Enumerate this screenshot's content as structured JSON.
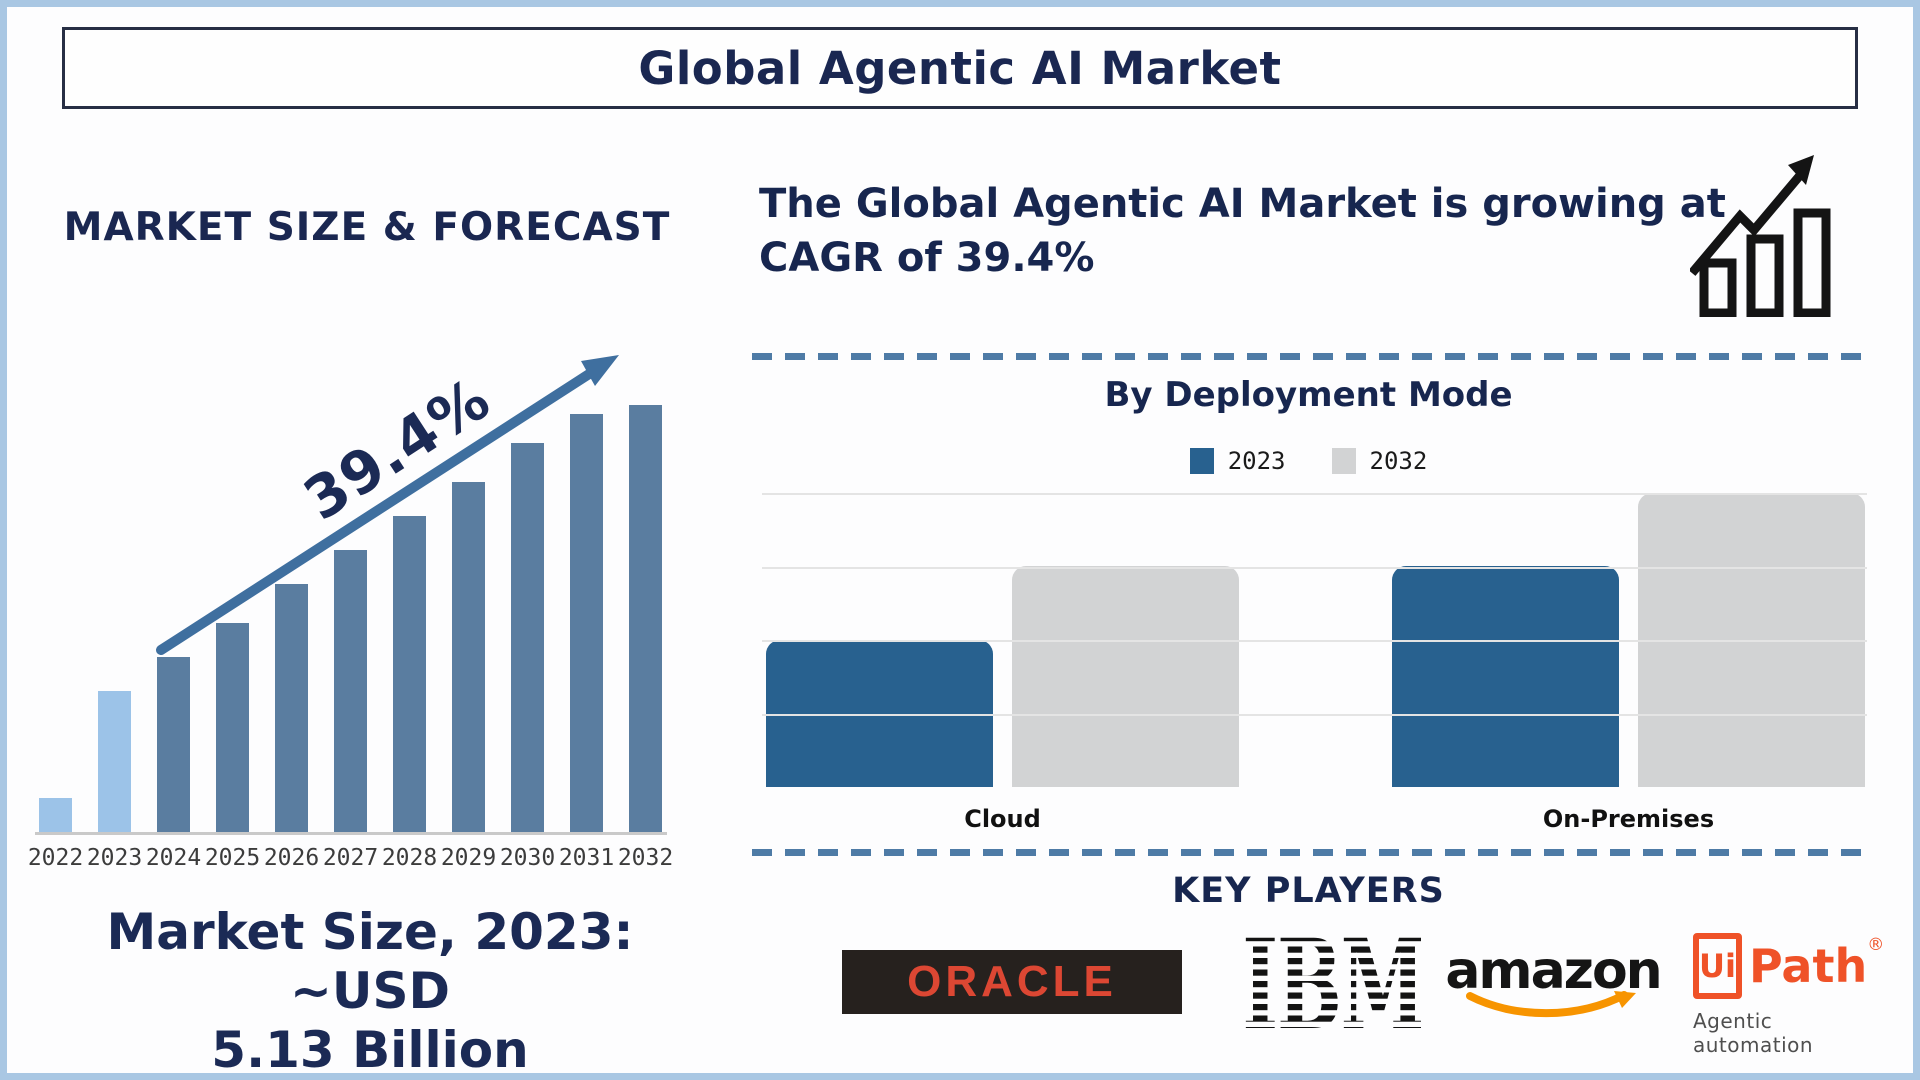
{
  "page": {
    "title": "Global Agentic AI Market",
    "colors": {
      "navy_text": "#1a2751",
      "steel_bar": "#5a7da0",
      "light_bar": "#9cc3e8",
      "trend_arrow_blue": "#3f6f9f",
      "deployment_2023_blue": "#28618f",
      "deployment_2032_gray": "#d2d3d4",
      "dashed_divider_blue": "#4e7ba6",
      "frame_light_blue": "#a9c7e3",
      "oracle_red": "#dc4733",
      "amazon_orange": "#f79400",
      "uipath_orange": "#ef5228"
    }
  },
  "left": {
    "caption_line1": "Market Size, 2023: ~USD",
    "caption_line2": "5.13 Billion"
  },
  "right": {
    "heading_line1": "The Global Agentic AI Market is growing at",
    "heading_line2": "CAGR of 39.4%",
    "key_players_title": "KEY PLAYERS",
    "logos": {
      "oracle": "ORACLE",
      "ibm": "IBM",
      "amazon": "amazon",
      "uipath_box": "Ui",
      "uipath_text": "Path",
      "uipath_reg": "®",
      "uipath_caption": "Agentic automation"
    }
  },
  "chart_data": [
    {
      "type": "bar",
      "title": "MARKET SIZE & FORECAST",
      "categories": [
        "2022",
        "2023",
        "2024",
        "2025",
        "2026",
        "2027",
        "2028",
        "2029",
        "2030",
        "2031",
        "2032"
      ],
      "values": [
        8,
        33,
        41,
        49,
        58,
        66,
        74,
        82,
        91,
        98,
        100
      ],
      "value_units": "relative bar height, % of tallest bar (no numeric axis shown)",
      "bar_colors": [
        "#9cc3e8",
        "#9cc3e8",
        "#5a7da0",
        "#5a7da0",
        "#5a7da0",
        "#5a7da0",
        "#5a7da0",
        "#5a7da0",
        "#5a7da0",
        "#5a7da0",
        "#5a7da0"
      ],
      "annotation": "39.4%",
      "known_values": {
        "2023": "~USD 5.13 Billion"
      },
      "xlabel": "",
      "ylabel": "",
      "grid": false,
      "legend": "none"
    },
    {
      "type": "bar",
      "title": "By Deployment Mode",
      "categories": [
        "Cloud",
        "On-Premises"
      ],
      "series": [
        {
          "name": "2023",
          "color": "#28618f",
          "values": [
            2,
            3
          ]
        },
        {
          "name": "2032",
          "color": "#d2d3d4",
          "values": [
            3,
            4
          ]
        }
      ],
      "value_units": "relative units read from unlabeled gridlines",
      "ymax": 4,
      "grid": true,
      "legend_position": "top-center"
    }
  ]
}
